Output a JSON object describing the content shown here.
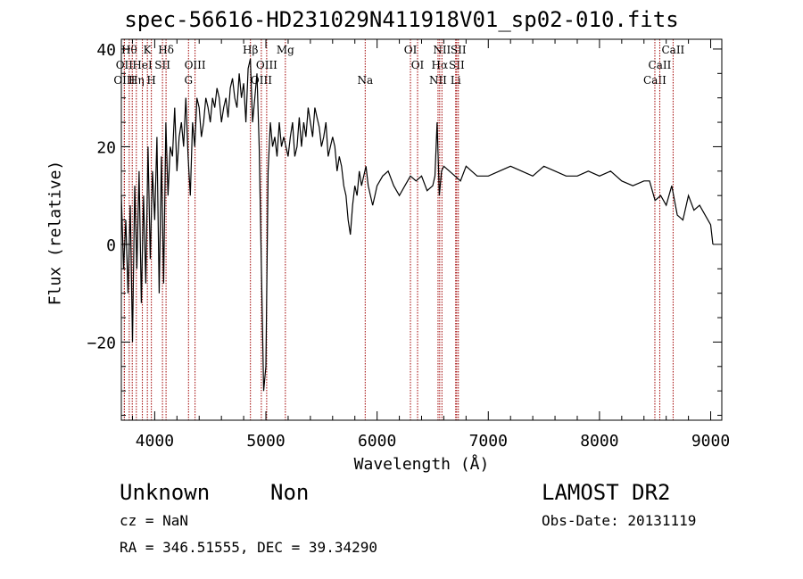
{
  "chart_data": {
    "type": "line",
    "title": "spec-56616-HD231029N411918V01_sp02-010.fits",
    "xlabel": "Wavelength (Å)",
    "ylabel": "Flux (relative)",
    "xlim": [
      3700,
      9100
    ],
    "ylim": [
      -36,
      42
    ],
    "xticks": [
      4000,
      5000,
      6000,
      7000,
      8000,
      9000
    ],
    "yticks": [
      -20,
      0,
      20,
      40
    ],
    "line_color": "#000000",
    "marker_color": "#a00000",
    "series": [
      {
        "x": [
          3700,
          3720,
          3740,
          3760,
          3780,
          3800,
          3820,
          3840,
          3860,
          3880,
          3900,
          3920,
          3940,
          3960,
          3980,
          4000,
          4020,
          4040,
          4060,
          4080,
          4100,
          4120,
          4140,
          4160,
          4180,
          4200,
          4220,
          4240,
          4260,
          4280,
          4300,
          4320,
          4340,
          4360,
          4380,
          4400,
          4420,
          4440,
          4460,
          4480,
          4500,
          4520,
          4540,
          4560,
          4580,
          4600,
          4620,
          4640,
          4660,
          4680,
          4700,
          4720,
          4740,
          4760,
          4780,
          4800,
          4820,
          4840,
          4860,
          4880,
          4900,
          4920,
          4940,
          4960,
          4980,
          5000,
          5020,
          5040,
          5060,
          5080,
          5100,
          5120,
          5140,
          5160,
          5180,
          5200,
          5220,
          5240,
          5260,
          5280,
          5300,
          5320,
          5340,
          5360,
          5380,
          5400,
          5420,
          5440,
          5460,
          5480,
          5500,
          5520,
          5540,
          5560,
          5580,
          5600,
          5620,
          5640,
          5660,
          5680,
          5700,
          5720,
          5740,
          5760,
          5780,
          5800,
          5820,
          5840,
          5860,
          5880,
          5900,
          5920,
          5940,
          5960,
          5980,
          6000,
          6050,
          6100,
          6150,
          6200,
          6250,
          6300,
          6350,
          6400,
          6450,
          6500,
          6520,
          6540,
          6560,
          6580,
          6600,
          6650,
          6700,
          6750,
          6800,
          6850,
          6900,
          7000,
          7100,
          7200,
          7300,
          7400,
          7500,
          7600,
          7700,
          7800,
          7900,
          8000,
          8100,
          8200,
          8300,
          8400,
          8450,
          8500,
          8550,
          8600,
          8650,
          8700,
          8750,
          8800,
          8850,
          8900,
          8950,
          9000,
          9020
        ],
        "y": [
          10,
          -5,
          5,
          -10,
          8,
          -20,
          12,
          -5,
          15,
          -12,
          10,
          -8,
          20,
          -3,
          15,
          5,
          22,
          -10,
          18,
          -8,
          25,
          10,
          20,
          18,
          28,
          15,
          22,
          25,
          20,
          30,
          18,
          10,
          25,
          20,
          30,
          28,
          22,
          25,
          30,
          28,
          25,
          30,
          28,
          32,
          30,
          25,
          28,
          30,
          26,
          32,
          34,
          30,
          28,
          35,
          30,
          33,
          25,
          36,
          38,
          25,
          30,
          35,
          20,
          -5,
          -30,
          -25,
          15,
          25,
          20,
          22,
          18,
          25,
          20,
          22,
          20,
          18,
          22,
          25,
          18,
          20,
          26,
          20,
          25,
          22,
          28,
          25,
          22,
          28,
          26,
          24,
          20,
          22,
          25,
          18,
          20,
          22,
          20,
          15,
          18,
          16,
          12,
          10,
          5,
          2,
          8,
          12,
          10,
          15,
          12,
          14,
          16,
          12,
          10,
          8,
          10,
          12,
          14,
          15,
          12,
          10,
          12,
          14,
          13,
          14,
          11,
          12,
          14,
          25,
          10,
          15,
          16,
          15,
          14,
          13,
          16,
          15,
          14,
          14,
          15,
          16,
          15,
          14,
          16,
          15,
          14,
          14,
          15,
          14,
          15,
          13,
          12,
          13,
          13,
          9,
          10,
          8,
          12,
          6,
          5,
          10,
          7,
          8,
          6,
          4,
          0
        ]
      }
    ],
    "line_markers": [
      {
        "x": 3727,
        "label": "OII",
        "row": 1
      },
      {
        "x": 3727,
        "label": "OIII",
        "row": 2
      },
      {
        "x": 3771,
        "label": "Hθ",
        "row": 0
      },
      {
        "x": 3798,
        "label": "",
        "row": 0
      },
      {
        "x": 3835,
        "label": "Hη",
        "row": 2
      },
      {
        "x": 3889,
        "label": "HeI",
        "row": 1
      },
      {
        "x": 3934,
        "label": "K",
        "row": 0
      },
      {
        "x": 3970,
        "label": "H",
        "row": 2
      },
      {
        "x": 4070,
        "label": "SII",
        "row": 1
      },
      {
        "x": 4102,
        "label": "Hδ",
        "row": 0
      },
      {
        "x": 4304,
        "label": "G",
        "row": 2
      },
      {
        "x": 4363,
        "label": "OIII",
        "row": 1
      },
      {
        "x": 4861,
        "label": "Hβ",
        "row": 0
      },
      {
        "x": 4959,
        "label": "OIII",
        "row": 2
      },
      {
        "x": 5007,
        "label": "OIII",
        "row": 1
      },
      {
        "x": 5175,
        "label": "Mg",
        "row": 0
      },
      {
        "x": 5893,
        "label": "Na",
        "row": 2
      },
      {
        "x": 6300,
        "label": "OI",
        "row": 0
      },
      {
        "x": 6364,
        "label": "OI",
        "row": 1
      },
      {
        "x": 6548,
        "label": "NII",
        "row": 2
      },
      {
        "x": 6563,
        "label": "Hα",
        "row": 1
      },
      {
        "x": 6583,
        "label": "NII",
        "row": 0
      },
      {
        "x": 6707,
        "label": "Li",
        "row": 2
      },
      {
        "x": 6716,
        "label": "SII",
        "row": 1
      },
      {
        "x": 6731,
        "label": "SII",
        "row": 0
      },
      {
        "x": 8498,
        "label": "CaII",
        "row": 2
      },
      {
        "x": 8542,
        "label": "CaII",
        "row": 1
      },
      {
        "x": 8662,
        "label": "CaII",
        "row": 0
      }
    ]
  },
  "info": {
    "class": "Unknown",
    "subclass": "Non",
    "survey": "LAMOST DR2",
    "cz": "cz = NaN",
    "obs_date": "Obs-Date: 20131119",
    "coords": "RA = 346.51555, DEC =  39.34290"
  }
}
